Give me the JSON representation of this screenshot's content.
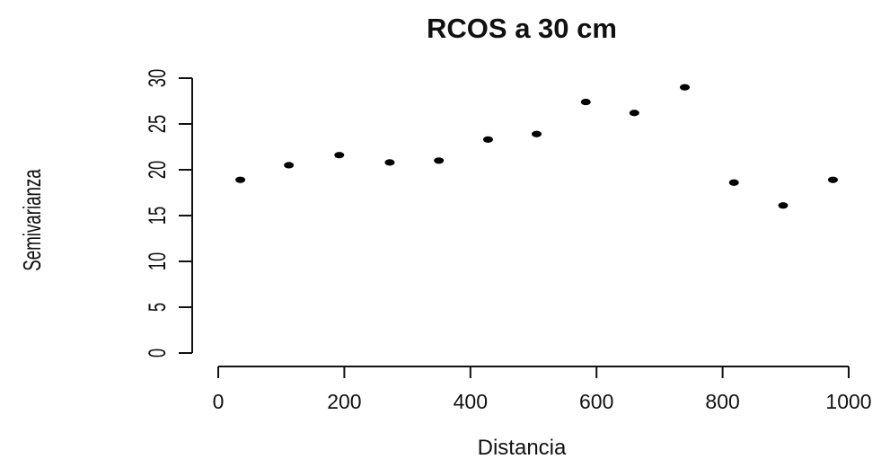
{
  "chart_data": {
    "type": "scatter",
    "title": "RCOS a 30 cm",
    "xlabel": "Distancia",
    "ylabel": "Semivarianza",
    "xlim": [
      0,
      1000
    ],
    "ylim": [
      0,
      30
    ],
    "x_ticks": [
      "0",
      "200",
      "400",
      "600",
      "800",
      "1000"
    ],
    "y_ticks": [
      "0",
      "5",
      "10",
      "15",
      "20",
      "25",
      "30"
    ],
    "grid": false,
    "series": [
      {
        "x": [
          35,
          112,
          192,
          272,
          350,
          428,
          505,
          583,
          660,
          740,
          818,
          896,
          975
        ],
        "y": [
          18.9,
          20.5,
          21.6,
          20.8,
          21.0,
          23.3,
          23.9,
          27.4,
          26.2,
          29.0,
          18.6,
          16.1,
          18.9
        ]
      }
    ]
  }
}
